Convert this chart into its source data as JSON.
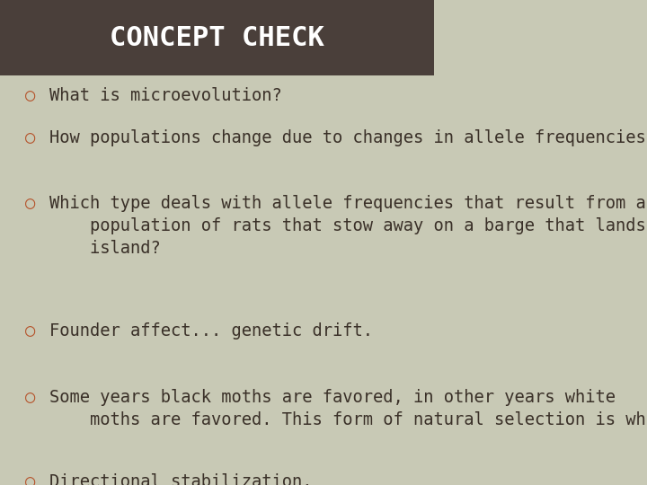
{
  "title": "CONCEPT CHECK",
  "title_bg_color": "#4a3f3a",
  "title_text_color": "#ffffff",
  "body_bg_color": "#c8c9b5",
  "bullet_color": "#b5522a",
  "text_color": "#3a3028",
  "font_family": "monospace",
  "title_fontsize": 22,
  "body_fontsize": 13.5,
  "bullets": [
    {
      "text": "What is microevolution?",
      "indent": 0
    },
    {
      "text": "How populations change due to changes in allele frequencies.",
      "indent": 0
    },
    {
      "text": "",
      "indent": 0
    },
    {
      "text": "Which type deals with allele frequencies that result from a\n  population of rats that stow away on a barge that lands on an\n  island?",
      "indent": 0
    },
    {
      "text": "Founder affect... genetic drift.",
      "indent": 0
    },
    {
      "text": "",
      "indent": 0
    },
    {
      "text": "Some years black moths are favored, in other years white\n  moths are favored. This form of natural selection is what?",
      "indent": 0
    },
    {
      "text": "Directional stabilization.",
      "indent": 0
    }
  ]
}
